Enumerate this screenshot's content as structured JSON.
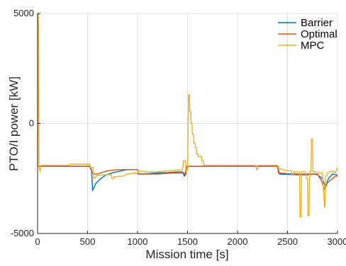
{
  "chart_data": {
    "type": "line",
    "xlabel": "Mission time [s]",
    "ylabel": "PTO/I power [kW]",
    "xlim": [
      0,
      3000
    ],
    "ylim": [
      -5000,
      5000
    ],
    "x_ticks": [
      0,
      500,
      1000,
      1500,
      2000,
      2500,
      3000
    ],
    "y_ticks": [
      -5000,
      0,
      5000
    ],
    "grid": true,
    "legend_position": "top-right",
    "series": [
      {
        "name": "Barrier",
        "color": "#0072BD",
        "points": [
          [
            0,
            -1950
          ],
          [
            30,
            -1950
          ],
          [
            520,
            -1950
          ],
          [
            540,
            -2100
          ],
          [
            550,
            -3050
          ],
          [
            580,
            -2750
          ],
          [
            620,
            -2550
          ],
          [
            680,
            -2350
          ],
          [
            760,
            -2230
          ],
          [
            850,
            -2140
          ],
          [
            900,
            -2100
          ],
          [
            1000,
            -2100
          ],
          [
            1010,
            -2300
          ],
          [
            1100,
            -2280
          ],
          [
            1200,
            -2250
          ],
          [
            1300,
            -2230
          ],
          [
            1400,
            -2200
          ],
          [
            1450,
            -2200
          ],
          [
            1470,
            -2400
          ],
          [
            1490,
            -1950
          ],
          [
            1520,
            -1950
          ],
          [
            1700,
            -1950
          ],
          [
            2400,
            -1950
          ],
          [
            2420,
            -2300
          ],
          [
            2600,
            -2330
          ],
          [
            2700,
            -2330
          ],
          [
            2760,
            -2300
          ],
          [
            2800,
            -2330
          ],
          [
            2850,
            -2500
          ],
          [
            2880,
            -2900
          ],
          [
            2910,
            -2500
          ],
          [
            2950,
            -2300
          ],
          [
            3000,
            -2350
          ]
        ]
      },
      {
        "name": "Optimal",
        "color": "#D95319",
        "points": [
          [
            0,
            -1950
          ],
          [
            30,
            -1950
          ],
          [
            520,
            -1950
          ],
          [
            540,
            -2150
          ],
          [
            560,
            -2300
          ],
          [
            600,
            -2300
          ],
          [
            650,
            -2220
          ],
          [
            700,
            -2150
          ],
          [
            800,
            -2100
          ],
          [
            1000,
            -2100
          ],
          [
            1005,
            -2300
          ],
          [
            1200,
            -2300
          ],
          [
            1350,
            -2250
          ],
          [
            1400,
            -2250
          ],
          [
            1460,
            -2250
          ],
          [
            1480,
            -2350
          ],
          [
            1495,
            -1950
          ],
          [
            1600,
            -1950
          ],
          [
            2400,
            -1950
          ],
          [
            2410,
            -2250
          ],
          [
            2500,
            -2280
          ],
          [
            2600,
            -2300
          ],
          [
            2700,
            -2300
          ],
          [
            2800,
            -2300
          ],
          [
            2840,
            -2600
          ],
          [
            2870,
            -3000
          ],
          [
            2900,
            -2700
          ],
          [
            2950,
            -2500
          ],
          [
            2980,
            -2400
          ],
          [
            3000,
            -2400
          ]
        ]
      },
      {
        "name": "MPC",
        "color": "#EDB120",
        "points": [
          [
            0,
            -1900
          ],
          [
            8,
            5000
          ],
          [
            15,
            -1900
          ],
          [
            25,
            -2200
          ],
          [
            35,
            -1900
          ],
          [
            320,
            -1900
          ],
          [
            325,
            -1850
          ],
          [
            520,
            -1850
          ],
          [
            530,
            -2000
          ],
          [
            555,
            -2000
          ],
          [
            560,
            -2500
          ],
          [
            600,
            -2350
          ],
          [
            650,
            -2350
          ],
          [
            700,
            -2330
          ],
          [
            740,
            -2330
          ],
          [
            745,
            -2500
          ],
          [
            760,
            -2500
          ],
          [
            765,
            -2420
          ],
          [
            850,
            -2400
          ],
          [
            900,
            -2300
          ],
          [
            980,
            -2250
          ],
          [
            1000,
            -2300
          ],
          [
            1005,
            -2150
          ],
          [
            1100,
            -2200
          ],
          [
            1200,
            -2200
          ],
          [
            1300,
            -2150
          ],
          [
            1400,
            -2120
          ],
          [
            1450,
            -2100
          ],
          [
            1460,
            -1700
          ],
          [
            1480,
            -1700
          ],
          [
            1485,
            -2200
          ],
          [
            1500,
            -2100
          ],
          [
            1510,
            1300
          ],
          [
            1520,
            1300
          ],
          [
            1522,
            550
          ],
          [
            1532,
            550
          ],
          [
            1535,
            0
          ],
          [
            1545,
            0
          ],
          [
            1548,
            -500
          ],
          [
            1560,
            -500
          ],
          [
            1562,
            -900
          ],
          [
            1575,
            -900
          ],
          [
            1578,
            -1100
          ],
          [
            1590,
            -1100
          ],
          [
            1592,
            -1400
          ],
          [
            1605,
            -1400
          ],
          [
            1608,
            -1500
          ],
          [
            1640,
            -1500
          ],
          [
            1643,
            -1700
          ],
          [
            1660,
            -1700
          ],
          [
            1662,
            -1900
          ],
          [
            1700,
            -1900
          ],
          [
            2150,
            -1900
          ],
          [
            2180,
            -1900
          ],
          [
            2190,
            -2100
          ],
          [
            2200,
            -2100
          ],
          [
            2205,
            -1900
          ],
          [
            2400,
            -1900
          ],
          [
            2420,
            -2050
          ],
          [
            2500,
            -2150
          ],
          [
            2540,
            -2150
          ],
          [
            2545,
            -2350
          ],
          [
            2560,
            -2350
          ],
          [
            2565,
            -2200
          ],
          [
            2620,
            -2200
          ],
          [
            2625,
            -4250
          ],
          [
            2635,
            -4250
          ],
          [
            2640,
            -2200
          ],
          [
            2680,
            -2200
          ],
          [
            2690,
            -2500
          ],
          [
            2700,
            -2500
          ],
          [
            2705,
            -4200
          ],
          [
            2715,
            -4200
          ],
          [
            2720,
            -2200
          ],
          [
            2735,
            -2200
          ],
          [
            2740,
            -700
          ],
          [
            2750,
            -700
          ],
          [
            2755,
            -2200
          ],
          [
            2800,
            -2200
          ],
          [
            2810,
            -2250
          ],
          [
            2850,
            -2250
          ],
          [
            2870,
            -3800
          ],
          [
            2875,
            -3800
          ],
          [
            2880,
            -2450
          ],
          [
            2900,
            -2250
          ],
          [
            2950,
            -2150
          ],
          [
            2980,
            -2250
          ],
          [
            3000,
            -2000
          ]
        ]
      }
    ]
  }
}
